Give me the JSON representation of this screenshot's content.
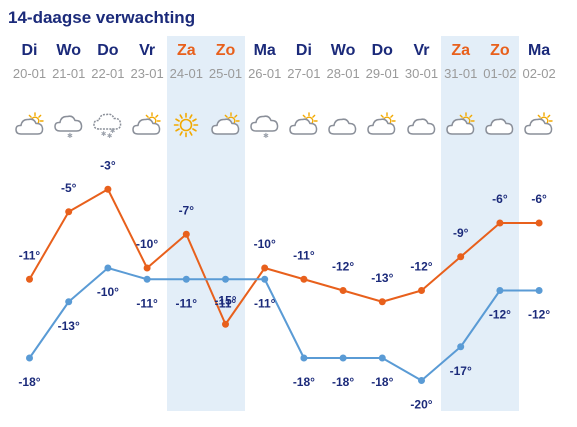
{
  "title": "14-daagse verwachting",
  "colors": {
    "max_line": "#e8601c",
    "min_line": "#5a9bd5",
    "weekend_band": "#e3eef8",
    "day_name": "#1b2a7a",
    "weekend_day_name": "#e8601c",
    "date": "#9a9a9a",
    "temp_label": "#1b2a7a"
  },
  "days": [
    {
      "name": "Di",
      "date": "20-01",
      "weekend": false,
      "icon": "partly-sunny-icon"
    },
    {
      "name": "Wo",
      "date": "21-01",
      "weekend": false,
      "icon": "cloud-snow-light-icon"
    },
    {
      "name": "Do",
      "date": "22-01",
      "weekend": false,
      "icon": "cloud-snow-icon"
    },
    {
      "name": "Vr",
      "date": "23-01",
      "weekend": false,
      "icon": "partly-sunny-icon"
    },
    {
      "name": "Za",
      "date": "24-01",
      "weekend": true,
      "icon": "sun-icon"
    },
    {
      "name": "Zo",
      "date": "25-01",
      "weekend": true,
      "icon": "partly-sunny-icon"
    },
    {
      "name": "Ma",
      "date": "26-01",
      "weekend": false,
      "icon": "cloud-snow-light-icon"
    },
    {
      "name": "Di",
      "date": "27-01",
      "weekend": false,
      "icon": "partly-sunny-icon"
    },
    {
      "name": "Wo",
      "date": "28-01",
      "weekend": false,
      "icon": "cloud-icon"
    },
    {
      "name": "Do",
      "date": "29-01",
      "weekend": false,
      "icon": "partly-sunny-icon"
    },
    {
      "name": "Vr",
      "date": "30-01",
      "weekend": false,
      "icon": "cloud-icon"
    },
    {
      "name": "Za",
      "date": "31-01",
      "weekend": true,
      "icon": "partly-sunny-icon"
    },
    {
      "name": "Zo",
      "date": "01-02",
      "weekend": true,
      "icon": "cloud-icon"
    },
    {
      "name": "Ma",
      "date": "02-02",
      "weekend": false,
      "icon": "partly-sunny-icon"
    }
  ],
  "chart_data": {
    "type": "line",
    "x": [
      "20-01",
      "21-01",
      "22-01",
      "23-01",
      "24-01",
      "25-01",
      "26-01",
      "27-01",
      "28-01",
      "29-01",
      "30-01",
      "31-01",
      "01-02",
      "02-02"
    ],
    "series": [
      {
        "values": [
          -11,
          -5,
          -3,
          -10,
          -7,
          -15,
          -10,
          -11,
          -12,
          -13,
          -12,
          -9,
          -6,
          -6
        ]
      },
      {
        "values": [
          -18,
          -13,
          -10,
          -11,
          -11,
          -11,
          -11,
          -18,
          -18,
          -18,
          -20,
          -17,
          -12,
          -12
        ]
      }
    ],
    "unit": "°",
    "grid": false
  }
}
